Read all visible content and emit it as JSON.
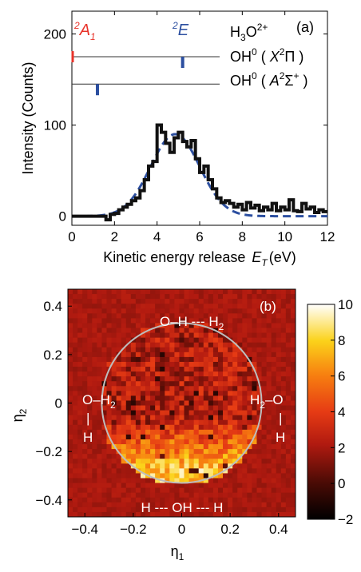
{
  "chart_data": [
    {
      "type": "line",
      "panel_label": "(a)",
      "xlabel": "Kinetic energy release",
      "xlabel_symbol": "E",
      "xlabel_symbol_sub": "T",
      "xlabel_unit": "(eV)",
      "ylabel": "Intensity (Counts)",
      "xlim": [
        0,
        12
      ],
      "ylim": [
        -10,
        225
      ],
      "xticks": [
        "0",
        "2",
        "4",
        "6",
        "8",
        "10",
        "12"
      ],
      "yticks": [
        "0",
        "100",
        "200"
      ],
      "series": [
        {
          "style": "histogram",
          "color": "#111111",
          "x": [
            0,
            1.6,
            1.8,
            2.0,
            2.2,
            2.4,
            2.6,
            2.8,
            3.0,
            3.2,
            3.4,
            3.6,
            3.8,
            4.0,
            4.2,
            4.4,
            4.6,
            4.8,
            5.0,
            5.2,
            5.4,
            5.6,
            5.8,
            6.0,
            6.2,
            6.4,
            6.6,
            6.8,
            7.0,
            7.2,
            7.4,
            7.6,
            7.8,
            8.0,
            8.2,
            8.4,
            8.6,
            8.8,
            9.0,
            9.2,
            9.4,
            9.6,
            9.8,
            10.0,
            10.2,
            10.4,
            10.6,
            10.8,
            11.0,
            11.2,
            11.4,
            11.6,
            11.8
          ],
          "values": [
            0,
            -4,
            2,
            3,
            7,
            10,
            13,
            17,
            20,
            28,
            40,
            55,
            60,
            100,
            92,
            80,
            70,
            86,
            92,
            82,
            76,
            83,
            63,
            48,
            55,
            40,
            30,
            20,
            15,
            17,
            14,
            10,
            13,
            7,
            15,
            9,
            12,
            6,
            10,
            7,
            14,
            6,
            10,
            7,
            18,
            6,
            5,
            14,
            8,
            10,
            4,
            7,
            5
          ]
        },
        {
          "style": "dashed-fit",
          "color": "#2c4fa0",
          "gaussian": {
            "center": 4.85,
            "amplitude": 90,
            "sigma": 1.15,
            "xmin": 0,
            "xmax": 12
          }
        }
      ],
      "annotations": {
        "state_a1": {
          "text": "A",
          "sup": "2",
          "sub": "1",
          "color": "#e8332a",
          "x_position": 0
        },
        "state_e": {
          "text": "E",
          "sup": "2",
          "color": "#2c4fa0",
          "x_position": 5.2
        },
        "h3o": {
          "text": "H",
          "sub": "3",
          "rest": "O",
          "sup": "2+"
        },
        "oh_x": {
          "text": "OH",
          "sup": "0",
          "state": "X",
          "state_sup": "2",
          "term": "Π"
        },
        "oh_a": {
          "text": "OH",
          "sup": "0",
          "state": "A",
          "state_sup": "2",
          "term": "Σ",
          "term_sup": "+"
        }
      },
      "level_lines": [
        {
          "name": "h3o",
          "y": 200
        },
        {
          "name": "oh-x",
          "y": 175,
          "marker_x": 5.2,
          "marker_color": "#2c4fa0",
          "edge_color": "#e8332a"
        },
        {
          "name": "oh-a",
          "y": 145,
          "marker_x": 1.2,
          "marker_color": "#2c4fa0"
        }
      ]
    },
    {
      "type": "heatmap",
      "panel_label": "(b)",
      "xlabel": "η",
      "xlabel_sub": "1",
      "ylabel": "η",
      "ylabel_sub": "2",
      "xlim": [
        -0.47,
        0.47
      ],
      "ylim": [
        -0.47,
        0.47
      ],
      "xticks": [
        "−0.4",
        "−0.2",
        "0",
        "0.2",
        "0.4"
      ],
      "yticks": [
        "0.4",
        "0.2",
        "0",
        "−0.2",
        "−0.4"
      ],
      "colorbar_range": [
        -2,
        10
      ],
      "colorbar_ticks": [
        "10",
        "8",
        "6",
        "4",
        "2",
        "0",
        "−2"
      ],
      "circle_radius": 0.33,
      "labels": {
        "top": "O–H --- H",
        "top_sub": "2",
        "bottom": "H --- OH --- H",
        "left_main": "O–H",
        "left_sub": "2",
        "left_bar": "|",
        "left_h": "H",
        "right_main_a": "H",
        "right_main_sub": "2",
        "right_main_b": "–O",
        "right_bar": "|",
        "right_h": "H"
      }
    }
  ]
}
